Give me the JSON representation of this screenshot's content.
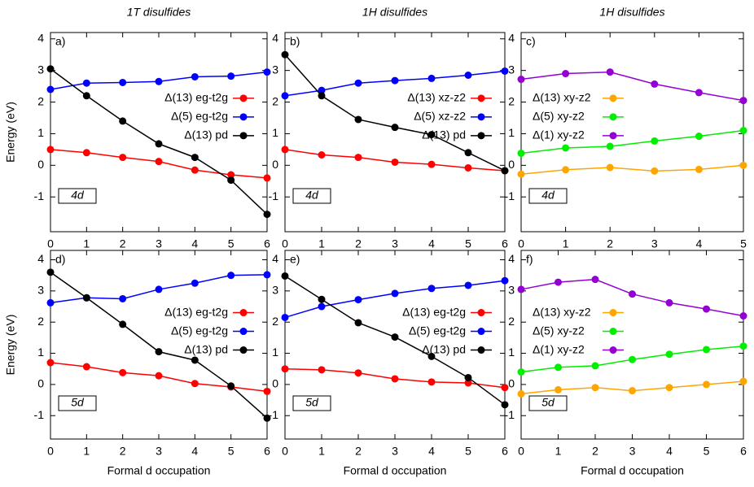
{
  "chart_data": [
    {
      "type": "line",
      "title": "1T disulfides",
      "panel_label": "a)",
      "annotation": "4d",
      "ylabel": "Energy (eV)",
      "x": [
        0,
        1,
        2,
        3,
        4,
        5,
        6
      ],
      "xlim": [
        0,
        6
      ],
      "xticks": [
        0,
        1,
        2,
        3,
        4,
        5,
        6
      ],
      "ylim": [
        -2.1,
        4.2
      ],
      "yticks": [
        -1,
        0,
        1,
        2,
        3,
        4
      ],
      "legend": "right",
      "series": [
        {
          "name": "Δ(13) eg-t2g",
          "color": "#ff0000",
          "values": [
            0.5,
            0.4,
            0.25,
            0.12,
            -0.15,
            -0.3,
            -0.4
          ]
        },
        {
          "name": "Δ(5) eg-t2g",
          "color": "#0000ff",
          "values": [
            2.4,
            2.6,
            2.62,
            2.65,
            2.8,
            2.82,
            2.95
          ]
        },
        {
          "name": "Δ(13) pd",
          "color": "#000000",
          "values": [
            3.05,
            2.2,
            1.4,
            0.68,
            0.25,
            -0.47,
            -1.55
          ]
        }
      ]
    },
    {
      "type": "line",
      "title": "1H disulfides",
      "panel_label": "b)",
      "annotation": "4d",
      "x": [
        0,
        1,
        2,
        3,
        4,
        5,
        6
      ],
      "xlim": [
        0,
        6
      ],
      "xticks": [
        0,
        1,
        2,
        3,
        4,
        5,
        6
      ],
      "ylim": [
        -2.1,
        4.2
      ],
      "yticks": [
        -1,
        0,
        1,
        2,
        3,
        4
      ],
      "legend": "right",
      "series": [
        {
          "name": "Δ(13) xz-z2",
          "color": "#ff0000",
          "values": [
            0.5,
            0.33,
            0.25,
            0.1,
            0.03,
            -0.08,
            -0.17
          ]
        },
        {
          "name": "Δ(5) xz-z2",
          "color": "#0000ff",
          "values": [
            2.2,
            2.37,
            2.6,
            2.68,
            2.75,
            2.85,
            2.98
          ]
        },
        {
          "name": "Δ(13) pd",
          "color": "#000000",
          "values": [
            3.5,
            2.2,
            1.45,
            1.2,
            0.97,
            0.4,
            -0.17
          ]
        }
      ]
    },
    {
      "type": "line",
      "title": "1H disulfides",
      "panel_label": "c)",
      "annotation": "4d",
      "x": [
        0,
        1,
        2,
        3,
        4,
        5
      ],
      "xlim": [
        0,
        5
      ],
      "xticks": [
        0,
        1,
        2,
        3,
        4,
        5
      ],
      "ylim": [
        -2.1,
        4.2
      ],
      "yticks": [
        -1,
        0,
        1,
        2,
        3,
        4
      ],
      "legend": "left",
      "series": [
        {
          "name": "Δ(13) xy-z2",
          "color": "#ffa500",
          "values": [
            -0.28,
            -0.14,
            -0.07,
            -0.18,
            -0.13,
            0.0
          ]
        },
        {
          "name": "Δ(5) xy-z2",
          "color": "#00ee00",
          "values": [
            0.38,
            0.55,
            0.6,
            0.77,
            0.92,
            1.1
          ]
        },
        {
          "name": "Δ(1) xy-z2",
          "color": "#9400d3",
          "values": [
            2.72,
            2.9,
            2.95,
            2.57,
            2.3,
            2.05
          ]
        }
      ]
    },
    {
      "type": "line",
      "panel_label": "d)",
      "annotation": "5d",
      "ylabel": "Energy (eV)",
      "xlabel": "Formal d occupation",
      "x": [
        0,
        1,
        2,
        3,
        4,
        5,
        6
      ],
      "xlim": [
        0,
        6
      ],
      "xticks": [
        0,
        1,
        2,
        3,
        4,
        5,
        6
      ],
      "ylim": [
        -1.75,
        4.3
      ],
      "yticks": [
        -1,
        0,
        1,
        2,
        3,
        4
      ],
      "legend": "right",
      "series": [
        {
          "name": "Δ(13) eg-t2g",
          "color": "#ff0000",
          "values": [
            0.7,
            0.57,
            0.38,
            0.28,
            0.03,
            -0.08,
            -0.22
          ]
        },
        {
          "name": "Δ(5) eg-t2g",
          "color": "#0000ff",
          "values": [
            2.62,
            2.78,
            2.75,
            3.05,
            3.25,
            3.5,
            3.52
          ]
        },
        {
          "name": "Δ(13) pd",
          "color": "#000000",
          "values": [
            3.6,
            2.78,
            1.93,
            1.05,
            0.78,
            -0.05,
            -1.08
          ]
        }
      ]
    },
    {
      "type": "line",
      "panel_label": "e)",
      "annotation": "5d",
      "xlabel": "Formal d occupation",
      "x": [
        0,
        1,
        2,
        3,
        4,
        5,
        6
      ],
      "xlim": [
        0,
        6
      ],
      "xticks": [
        0,
        1,
        2,
        3,
        4,
        5,
        6
      ],
      "ylim": [
        -1.75,
        4.3
      ],
      "yticks": [
        -1,
        0,
        1,
        2,
        3,
        4
      ],
      "legend": "right",
      "series": [
        {
          "name": "Δ(13) eg-t2g",
          "color": "#ff0000",
          "values": [
            0.5,
            0.47,
            0.37,
            0.18,
            0.08,
            0.05,
            -0.1
          ]
        },
        {
          "name": "Δ(5) eg-t2g",
          "color": "#0000ff",
          "values": [
            2.15,
            2.5,
            2.72,
            2.92,
            3.08,
            3.18,
            3.33
          ]
        },
        {
          "name": "Δ(13) pd",
          "color": "#000000",
          "values": [
            3.48,
            2.73,
            1.98,
            1.52,
            0.9,
            0.22,
            -0.65
          ]
        }
      ]
    },
    {
      "type": "line",
      "panel_label": "f)",
      "annotation": "5d",
      "xlabel": "Formal d occupation",
      "x": [
        0,
        1,
        2,
        3,
        4,
        5,
        6
      ],
      "xlim": [
        0,
        6
      ],
      "xticks": [
        0,
        1,
        2,
        3,
        4,
        5,
        6
      ],
      "ylim": [
        -1.75,
        4.3
      ],
      "yticks": [
        -1,
        0,
        1,
        2,
        3,
        4
      ],
      "legend": "left",
      "series": [
        {
          "name": "Δ(13) xy-z2",
          "color": "#ffa500",
          "values": [
            -0.3,
            -0.17,
            -0.1,
            -0.2,
            -0.1,
            0.0,
            0.1
          ]
        },
        {
          "name": "Δ(5) xy-z2",
          "color": "#00ee00",
          "values": [
            0.4,
            0.55,
            0.6,
            0.8,
            0.97,
            1.12,
            1.23
          ]
        },
        {
          "name": "Δ(1) xy-z2",
          "color": "#9400d3",
          "values": [
            3.05,
            3.28,
            3.37,
            2.9,
            2.62,
            2.42,
            2.2
          ]
        }
      ]
    }
  ]
}
